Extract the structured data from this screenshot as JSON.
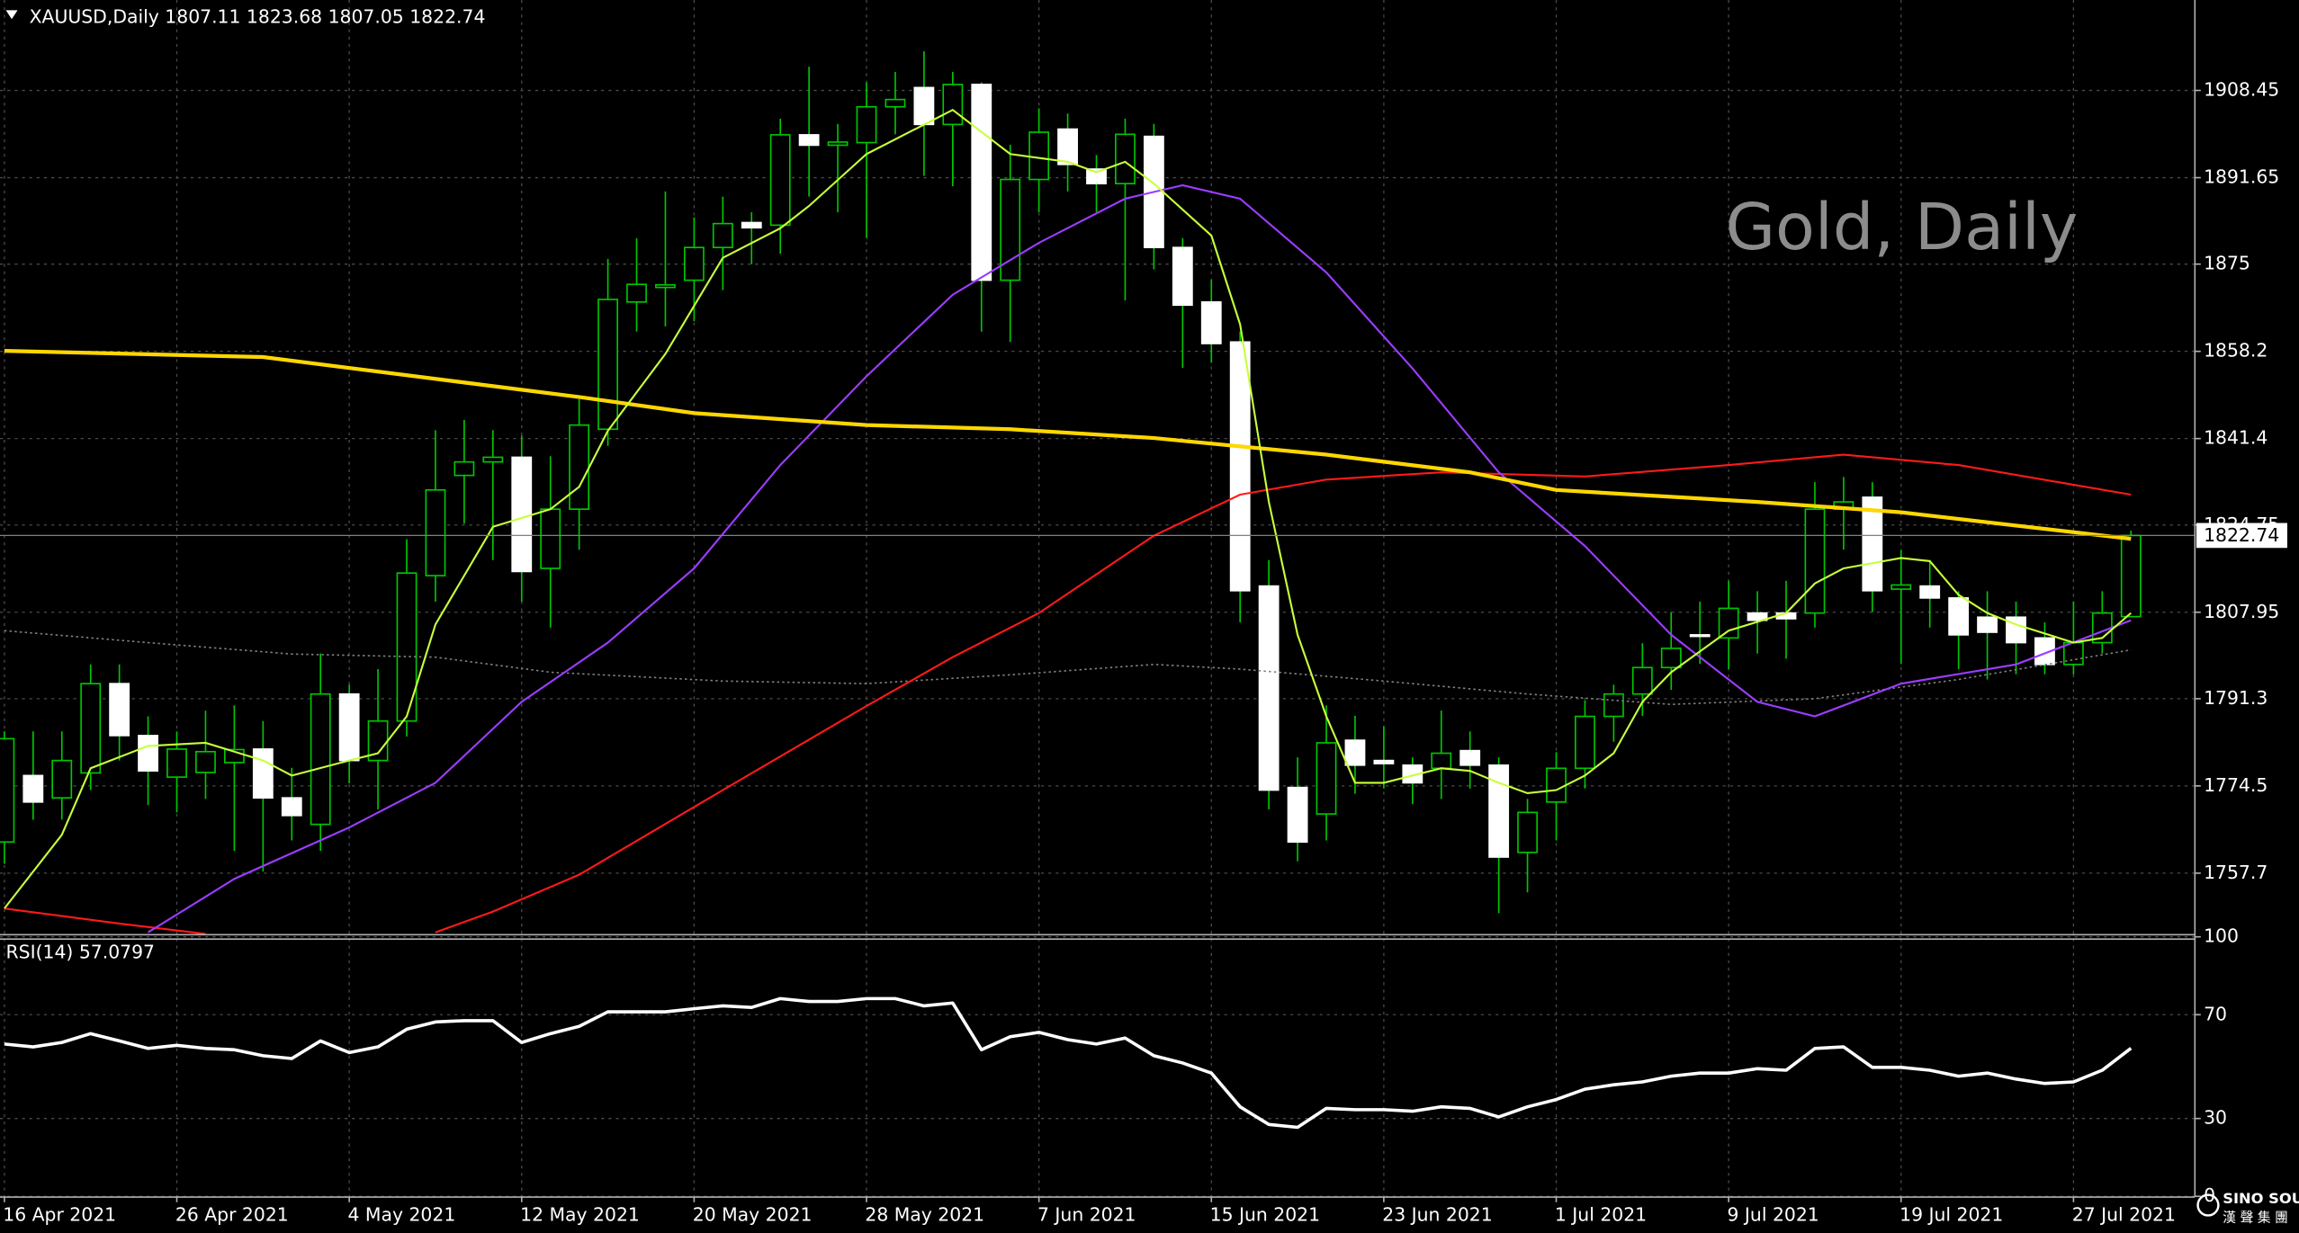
{
  "chart_data": [
    {
      "type": "candlestick",
      "title": "XAUUSD,Daily  1807.11 1823.68 1807.05 1822.74",
      "watermark": "Gold, Daily",
      "categories": [
        "16 Apr 2021",
        null,
        null,
        null,
        null,
        null,
        "26 Apr 2021",
        null,
        null,
        null,
        null,
        null,
        "4 May 2021",
        null,
        null,
        null,
        null,
        null,
        "12 May 2021",
        null,
        null,
        null,
        null,
        null,
        "20 May 2021",
        null,
        null,
        null,
        null,
        null,
        "28 May 2021",
        null,
        null,
        null,
        null,
        null,
        "7 Jun 2021",
        null,
        null,
        null,
        null,
        null,
        "15 Jun 2021",
        null,
        null,
        null,
        null,
        null,
        "23 Jun 2021",
        null,
        null,
        null,
        null,
        null,
        "1 Jul 2021",
        null,
        null,
        null,
        null,
        null,
        "9 Jul 2021",
        null,
        null,
        null,
        null,
        null,
        "19 Jul 2021",
        null,
        null,
        null,
        null,
        null,
        "27 Jul 2021",
        null,
        null
      ],
      "open": [
        1763.7,
        1776.5,
        1772.2,
        1777,
        1794.2,
        1784.2,
        1776.2,
        1777.1,
        1779,
        1781.6,
        1772.2,
        1767.1,
        1792.2,
        1779.4,
        1787,
        1815,
        1834.3,
        1836.9,
        1837.8,
        1816.4,
        1827.8,
        1843.2,
        1867.7,
        1870.5,
        1871.9,
        1878.2,
        1883,
        1882.5,
        1899.9,
        1897.9,
        1898.4,
        1905.3,
        1909,
        1901.9,
        1909.6,
        1871.9,
        1891.3,
        1901,
        1893.3,
        1890.5,
        1899.6,
        1878.2,
        1867.7,
        1860,
        1813,
        1774.2,
        1769.1,
        1783.3,
        1779.4,
        1778.5,
        1777.9,
        1781.3,
        1778.5,
        1761.7,
        1771.4,
        1777.9,
        1787.9,
        1792.2,
        1797.3,
        1803.6,
        1803,
        1807.8,
        1807.8,
        1807.8,
        1827.8,
        1830.1,
        1812.4,
        1813,
        1810.7,
        1807,
        1807,
        1803,
        1797.9,
        1802.1,
        1807.11
      ],
      "high": [
        1785,
        1785,
        1785,
        1797.9,
        1797.9,
        1787.9,
        1785,
        1789,
        1790,
        1787,
        1778,
        1800,
        1794,
        1797,
        1822,
        1843,
        1845,
        1843,
        1842,
        1838,
        1849,
        1876,
        1880,
        1889,
        1884,
        1888,
        1885,
        1903,
        1913,
        1902,
        1910,
        1912,
        1916,
        1912,
        1910,
        1898,
        1905,
        1904,
        1896,
        1903,
        1902,
        1880,
        1872,
        1862,
        1818,
        1780,
        1790,
        1788,
        1786,
        1780,
        1789,
        1785,
        1780,
        1772,
        1781,
        1791,
        1794,
        1802,
        1808,
        1810,
        1814,
        1812,
        1814,
        1833,
        1834,
        1833,
        1820,
        1818,
        1812,
        1812,
        1810,
        1806,
        1810,
        1812,
        1823.68
      ],
      "low": [
        1759.5,
        1768,
        1768,
        1773.7,
        1779.4,
        1770.8,
        1769.4,
        1772,
        1762,
        1758,
        1764,
        1762,
        1775,
        1770,
        1784,
        1810,
        1825,
        1818,
        1810,
        1805,
        1820,
        1840,
        1862,
        1863,
        1864,
        1870,
        1875,
        1877,
        1888,
        1885,
        1880,
        1900,
        1892,
        1890,
        1862,
        1860,
        1885,
        1889,
        1885,
        1868,
        1874,
        1855,
        1856,
        1806,
        1770,
        1760,
        1764,
        1773,
        1774,
        1771,
        1772,
        1774,
        1750,
        1754,
        1764,
        1774,
        1783,
        1788,
        1793,
        1798,
        1797,
        1800,
        1799,
        1805,
        1820,
        1808,
        1798,
        1805,
        1797,
        1795,
        1796,
        1796,
        1796,
        1800,
        1807.05
      ],
      "close": [
        1783.6,
        1771.4,
        1779.4,
        1794.2,
        1784.2,
        1777.4,
        1781.6,
        1781.1,
        1781.5,
        1772.2,
        1768.8,
        1792.2,
        1779.4,
        1787,
        1815.5,
        1831.5,
        1836.9,
        1837.8,
        1815.8,
        1827.8,
        1844,
        1868.2,
        1871.1,
        1871,
        1878.2,
        1882.8,
        1882,
        1899.9,
        1897.9,
        1898.5,
        1905.3,
        1906.7,
        1901.9,
        1909.6,
        1871.9,
        1891.3,
        1900.4,
        1894.2,
        1890.5,
        1900,
        1878.2,
        1867.1,
        1859.7,
        1812.1,
        1773.7,
        1763.7,
        1782.8,
        1778.5,
        1778.8,
        1775.1,
        1780.8,
        1778.5,
        1760.8,
        1769.4,
        1777.9,
        1787.9,
        1792.2,
        1797.3,
        1801,
        1803.3,
        1808.7,
        1806.4,
        1806.7,
        1827.8,
        1829.2,
        1812.1,
        1813.2,
        1810.7,
        1803.6,
        1804.1,
        1802.1,
        1797.9,
        1802.1,
        1807.8,
        1822.74
      ],
      "up_color": "#00c800",
      "down_color": "#ffffff",
      "wick_color": "#00c800",
      "overlays": [
        {
          "color": "#808080",
          "style": "dotted",
          "x": [
            0,
            5,
            10,
            15,
            19,
            25,
            30,
            35,
            40,
            43,
            48,
            53,
            58,
            63,
            68,
            74
          ],
          "values": [
            1804.4,
            1802.1,
            1799.9,
            1799.3,
            1796.4,
            1794.7,
            1794.2,
            1795.9,
            1797.9,
            1797,
            1794.7,
            1792.2,
            1790.2,
            1791.3,
            1795,
            1800.7
          ]
        },
        {
          "color": "#ff1a1a",
          "style": "solid",
          "x": [
            0,
            4,
            7,
            11,
            15,
            17,
            20,
            25,
            30,
            33,
            36,
            40,
            43,
            46,
            50,
            55,
            60,
            64,
            68,
            74
          ],
          "values": [
            1750.9,
            1748,
            1746,
            null,
            1746.3,
            1750.3,
            1757.4,
            1773.7,
            1789.9,
            1799.3,
            1807.8,
            1822.7,
            1830.6,
            1833.5,
            1834.9,
            1834.1,
            1836.3,
            1838.3,
            1836.3,
            1830.6
          ]
        },
        {
          "color": "#9b3dff",
          "style": "solid",
          "x": [
            5,
            8,
            12,
            15,
            18,
            21,
            24,
            27,
            30,
            33,
            36,
            39,
            41,
            43,
            46,
            49,
            52,
            55,
            58,
            61,
            63,
            66,
            70,
            74
          ],
          "values": [
            1746.3,
            1756.6,
            1766.5,
            1775.1,
            1790.7,
            1802.1,
            1816.4,
            1836.3,
            1853.4,
            1869.1,
            1879.1,
            1887.6,
            1890.2,
            1887.6,
            1873.4,
            1854.9,
            1834.9,
            1820.7,
            1803.6,
            1790.7,
            1787.9,
            1794.2,
            1797.9,
            1806.4
          ]
        },
        {
          "color": "#ffd700",
          "style": "thick",
          "x": [
            0,
            9,
            15,
            20,
            24,
            30,
            35,
            40,
            46,
            51,
            54,
            61,
            66,
            74
          ],
          "values": [
            1858.3,
            1857.1,
            1852.9,
            1849.4,
            1846.3,
            1844,
            1843.2,
            1841.5,
            1838.3,
            1834.9,
            1831.5,
            1829.2,
            1827.2,
            1822.1
          ]
        },
        {
          "color": "#c8ff3c",
          "style": "solid",
          "x": [
            0,
            2,
            3,
            5,
            7,
            9,
            10,
            12,
            13,
            14,
            15,
            17,
            19,
            20,
            21,
            23,
            25,
            27,
            28,
            30,
            33,
            35,
            37,
            38,
            39,
            40,
            42,
            43,
            44,
            45,
            46,
            47,
            48,
            50,
            51,
            52,
            53,
            54,
            55,
            56,
            57,
            58,
            60,
            62,
            63,
            64,
            66,
            67,
            68,
            69,
            70,
            72,
            73,
            74
          ],
          "values": [
            1750.9,
            1765.1,
            1777.9,
            1782.2,
            1782.8,
            1779.4,
            1776.5,
            1779.4,
            1780.8,
            1787.9,
            1805.6,
            1824.4,
            1827.8,
            1832.1,
            1842.9,
            1857.7,
            1876.2,
            1881.9,
            1886.2,
            1896.2,
            1904.7,
            1896.2,
            1894.7,
            1892.7,
            1894.7,
            1890.5,
            1880.5,
            1863.4,
            1829.2,
            1803.6,
            1787.9,
            1775.1,
            1775.1,
            1777.9,
            1777.4,
            1775.1,
            1773.1,
            1773.7,
            1776.5,
            1780.8,
            1790.7,
            1796.4,
            1804.4,
            1807.8,
            1813.5,
            1816.4,
            1818.4,
            1817.8,
            1811.3,
            1807.8,
            1805.6,
            1802.1,
            1803,
            1807.8
          ]
        }
      ],
      "last_price": 1822.74,
      "ylim": [
        1746.0,
        1925.3
      ],
      "yticks": [
        1757.7,
        1774.5,
        1791.3,
        1807.95,
        1824.75,
        1841.4,
        1858.2,
        1875.0,
        1891.65,
        1908.45
      ],
      "grid": true
    },
    {
      "type": "line",
      "title": "RSI(14) 57.0797",
      "color": "#ffffff",
      "values": [
        58.7,
        57.6,
        59.3,
        62.7,
        59.9,
        57,
        58.2,
        57,
        56.5,
        54.2,
        53.1,
        59.9,
        55.4,
        57.6,
        64.4,
        67.2,
        67.7,
        67.7,
        59.3,
        62.7,
        65.5,
        71.1,
        71.1,
        71.1,
        72.3,
        73.4,
        72.8,
        76.2,
        75.1,
        75.1,
        76.2,
        76.2,
        73.4,
        74.5,
        56.5,
        61.5,
        63.2,
        60.4,
        58.7,
        61,
        54.2,
        51.4,
        47.5,
        34.5,
        27.7,
        26.6,
        33.9,
        33.4,
        33.4,
        32.8,
        34.5,
        33.9,
        30.6,
        34.5,
        37.3,
        41.3,
        43,
        44.1,
        46.3,
        47.5,
        47.5,
        49.2,
        48.6,
        57,
        57.6,
        49.7,
        49.7,
        48.6,
        46.3,
        47.5,
        45.2,
        43.5,
        44.1,
        48.6,
        57.0797
      ],
      "ylim": [
        0,
        100
      ],
      "yticks": [
        0,
        30,
        70,
        100
      ]
    }
  ],
  "logo": {
    "name": "SINO SOUND",
    "subtitle": "漢 聲 集 團"
  }
}
